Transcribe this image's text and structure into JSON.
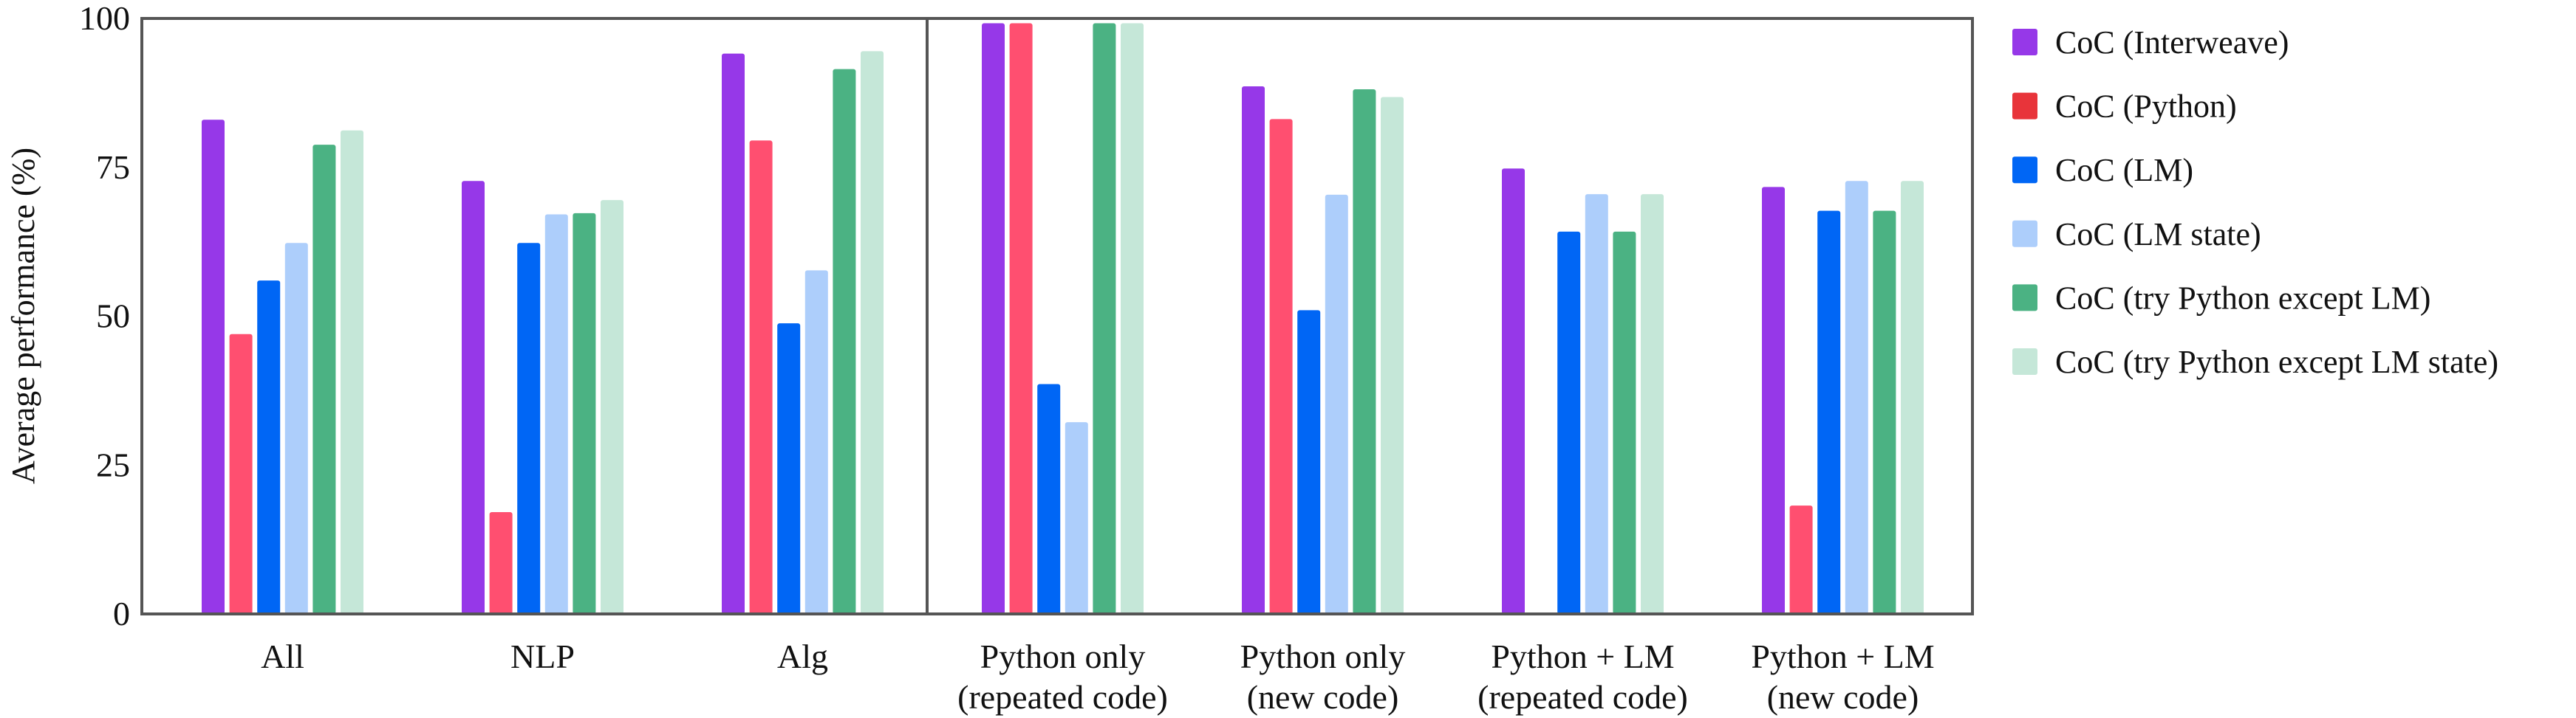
{
  "chart_data": {
    "type": "bar",
    "title": "",
    "xlabel": "",
    "ylabel": "Average performance (%)",
    "ylim": [
      0,
      100
    ],
    "yticks": [
      "0",
      "25",
      "50",
      "75",
      "100"
    ],
    "grid": false,
    "legend_position": "right",
    "divider_after_category": "Alg",
    "categories": [
      [
        "All"
      ],
      [
        "NLP"
      ],
      [
        "Alg"
      ],
      [
        "Python only",
        "(repeated code)"
      ],
      [
        "Python only",
        "(new code)"
      ],
      [
        "Python + LM",
        "(repeated code)"
      ],
      [
        "Python + LM",
        "(new code)"
      ]
    ],
    "series": [
      {
        "name": "CoC (Interweave)",
        "color": "#9638E8",
        "legend_color": "#9638E8",
        "values": [
          83,
          72.7,
          94.1,
          99.2,
          88.6,
          74.8,
          71.7
        ]
      },
      {
        "name": "CoC (Python)",
        "color": "#FF4F70",
        "legend_color": "#E8343A",
        "values": [
          47,
          17.1,
          79.5,
          99.2,
          83.1,
          0,
          18.2
        ]
      },
      {
        "name": "CoC (LM)",
        "color": "#0066F5",
        "legend_color": "#0066F5",
        "values": [
          56,
          62.3,
          48.8,
          38.6,
          51.0,
          64.2,
          67.7
        ]
      },
      {
        "name": "CoC (LM state)",
        "color": "#ADCEFB",
        "legend_color": "#ADCEFB",
        "values": [
          62.3,
          67.1,
          57.7,
          32.2,
          70.4,
          70.5,
          72.7
        ]
      },
      {
        "name": "CoC (try Python except LM)",
        "color": "#4BB283",
        "legend_color": "#4BB283",
        "values": [
          78.8,
          67.3,
          91.5,
          99.2,
          88.1,
          64.2,
          67.7
        ]
      },
      {
        "name": "CoC (try Python except LM state)",
        "color": "#C5E7D8",
        "legend_color": "#C5E7D8",
        "values": [
          81.2,
          69.5,
          94.5,
          99.2,
          86.8,
          70.5,
          72.7
        ]
      }
    ]
  }
}
